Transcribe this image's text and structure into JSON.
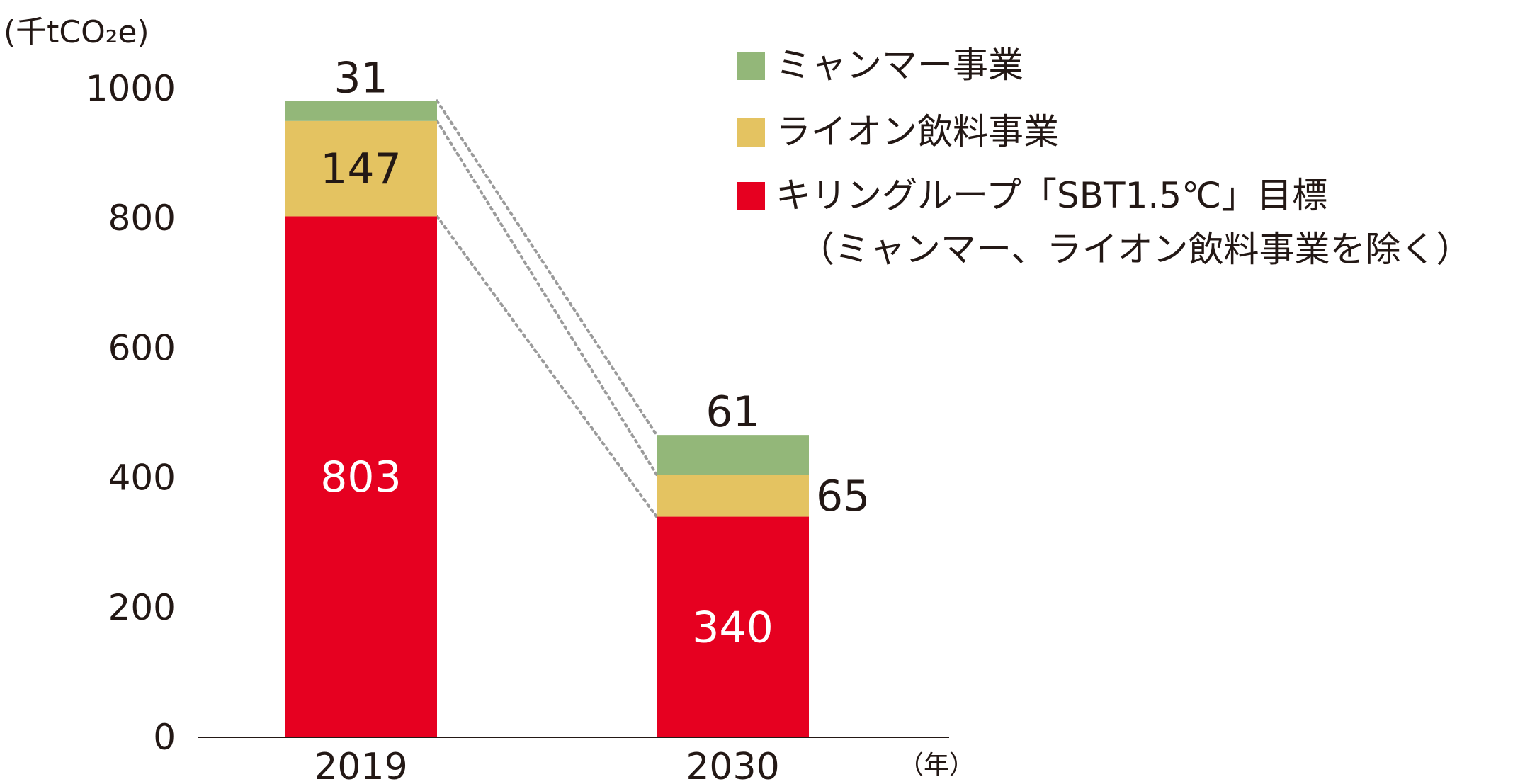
{
  "chart_data": {
    "type": "bar",
    "stacked": true,
    "y_unit_label": "(千tCO₂e)",
    "x_unit_label": "（年）",
    "categories": [
      "2019",
      "2030"
    ],
    "ylim": [
      0,
      1000
    ],
    "yticks": [
      0,
      200,
      400,
      600,
      800,
      1000
    ],
    "series": [
      {
        "name": "キリングループ「SBT1.5℃」目標",
        "name_line2": "（ミャンマー、ライオン飲料事業を除く）",
        "color": "#e60020",
        "label_color": "#ffffff",
        "values": [
          803,
          340
        ]
      },
      {
        "name": "ライオン飲料事業",
        "color": "#e4c361",
        "label_color": "#231815",
        "values": [
          147,
          65
        ]
      },
      {
        "name": "ミャンマー事業",
        "color": "#93b779",
        "label_color": "#231815",
        "values": [
          31,
          61
        ]
      }
    ],
    "legend_position": "top-right",
    "legend_order": [
      "ミャンマー事業",
      "ライオン飲料事業",
      "キリングループ「SBT1.5℃」目標"
    ],
    "connector_lines": "dotted",
    "grid": false
  }
}
